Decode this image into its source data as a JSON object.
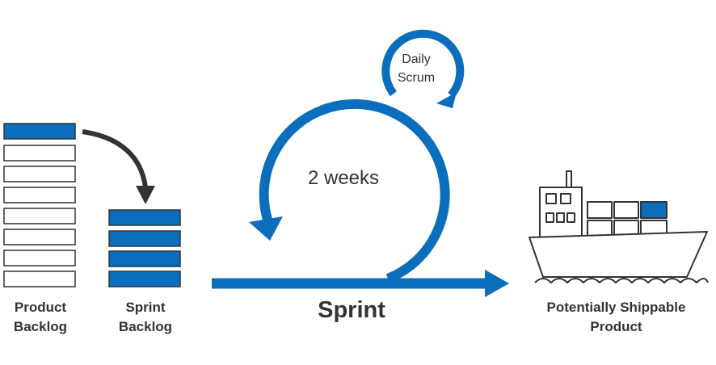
{
  "product_backlog": {
    "line1": "Product",
    "line2": "Backlog"
  },
  "sprint_backlog": {
    "line1": "Sprint",
    "line2": "Backlog"
  },
  "sprint": {
    "label": "Sprint",
    "duration": "2 weeks"
  },
  "daily_scrum": {
    "line1": "Daily",
    "line2": "Scrum"
  },
  "product": {
    "line1": "Potentially Shippable",
    "line2": "Product"
  },
  "colors": {
    "accent": "#0a6ebd",
    "dark": "#333333",
    "outline": "#333333"
  },
  "icons": {
    "ship": "container-ship-icon",
    "backlog_to_sprint": "curved-arrow-icon",
    "sprint_loop": "loop-arrow-icon",
    "daily_loop": "small-loop-arrow-icon"
  }
}
